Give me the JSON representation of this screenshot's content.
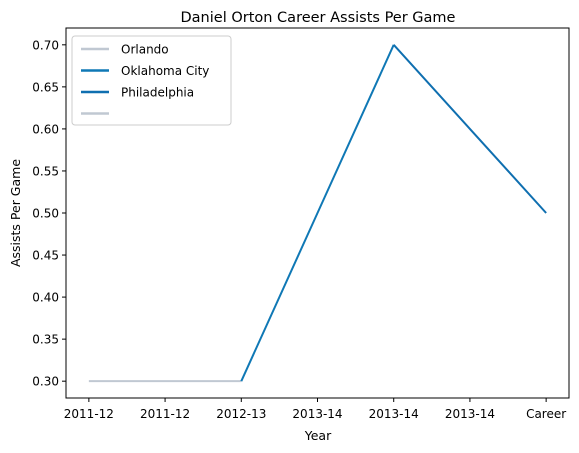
{
  "chart_data": {
    "type": "line",
    "title": "Daniel Orton Career Assists Per Game",
    "xlabel": "Year",
    "ylabel": "Assists Per Game",
    "categories": [
      "2011-12",
      "2011-12",
      "2012-13",
      "2013-14",
      "2013-14",
      "2013-14",
      "Career"
    ],
    "ylim": [
      0.28,
      0.72
    ],
    "yticks": [
      0.3,
      0.35,
      0.4,
      0.45,
      0.5,
      0.55,
      0.6,
      0.65,
      0.7
    ],
    "grid": false,
    "legend_position": "top-left",
    "series": [
      {
        "name": "Orlando",
        "color": "#c0c8d2",
        "points": [
          [
            0,
            0.3
          ],
          [
            1,
            0.3
          ],
          [
            2,
            0.3
          ]
        ]
      },
      {
        "name": "Oklahoma City",
        "color": "#0f78b5",
        "points": [
          [
            2,
            0.3
          ],
          [
            3,
            0.5
          ],
          [
            4,
            0.7
          ]
        ]
      },
      {
        "name": "Philadelphia",
        "color": "#0f6fb0",
        "points": [
          [
            4,
            0.7
          ],
          [
            5,
            0.6
          ],
          [
            6,
            0.5
          ]
        ]
      },
      {
        "name": "",
        "color": "#c0c8d2",
        "points": []
      }
    ]
  }
}
